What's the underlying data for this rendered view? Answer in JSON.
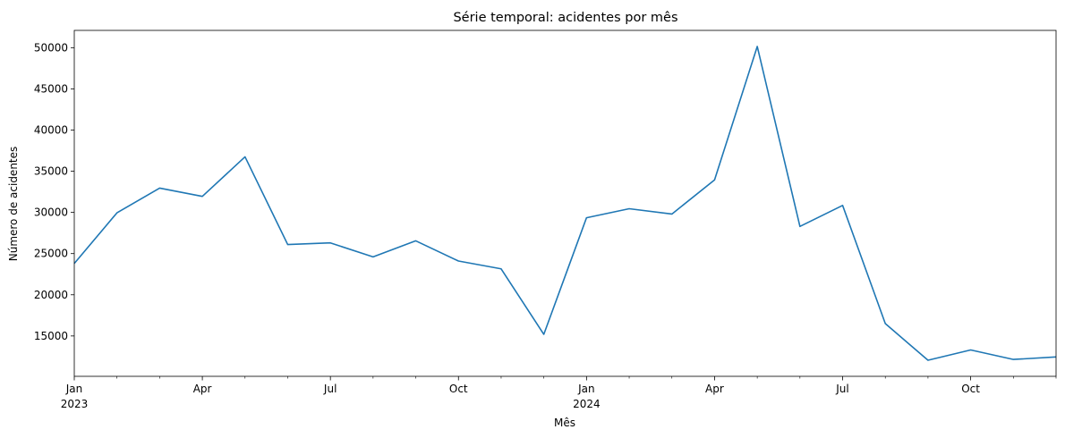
{
  "chart_data": {
    "type": "line",
    "title": "Série temporal: acidentes por mês",
    "xlabel": "Mês",
    "ylabel": "Número de acidentes",
    "x": [
      "2023-01",
      "2023-02",
      "2023-03",
      "2023-04",
      "2023-05",
      "2023-06",
      "2023-07",
      "2023-08",
      "2023-09",
      "2023-10",
      "2023-11",
      "2023-12",
      "2024-01",
      "2024-02",
      "2024-03",
      "2024-04",
      "2024-05",
      "2024-06",
      "2024-07",
      "2024-08",
      "2024-09",
      "2024-10",
      "2024-11",
      "2024-12"
    ],
    "series": [
      {
        "color": "#1f77b4",
        "values": [
          23800,
          29950,
          32950,
          31950,
          36750,
          26100,
          26300,
          24600,
          26550,
          24100,
          23150,
          15200,
          29350,
          30450,
          29800,
          33950,
          50150,
          28300,
          30850,
          16500,
          12050,
          13300,
          12150,
          12450
        ]
      }
    ],
    "xlim": [
      "2023-01",
      "2024-12"
    ],
    "ylim": [
      10100,
      52100
    ],
    "y_ticks": [
      {
        "value": 15000,
        "label": "15000"
      },
      {
        "value": 20000,
        "label": "20000"
      },
      {
        "value": 25000,
        "label": "25000"
      },
      {
        "value": 30000,
        "label": "30000"
      },
      {
        "value": 35000,
        "label": "35000"
      },
      {
        "value": 40000,
        "label": "40000"
      },
      {
        "value": 45000,
        "label": "45000"
      },
      {
        "value": 50000,
        "label": "50000"
      }
    ],
    "x_major_ticks": [
      {
        "x": "2023-01",
        "label": "Jan",
        "sublabel": "2023"
      },
      {
        "x": "2023-04",
        "label": "Apr",
        "sublabel": ""
      },
      {
        "x": "2023-07",
        "label": "Jul",
        "sublabel": ""
      },
      {
        "x": "2023-10",
        "label": "Oct",
        "sublabel": ""
      },
      {
        "x": "2024-01",
        "label": "Jan",
        "sublabel": "2024"
      },
      {
        "x": "2024-04",
        "label": "Apr",
        "sublabel": ""
      },
      {
        "x": "2024-07",
        "label": "Jul",
        "sublabel": ""
      },
      {
        "x": "2024-10",
        "label": "Oct",
        "sublabel": ""
      }
    ],
    "x_minor_ticks": [
      "2023-02",
      "2023-03",
      "2023-05",
      "2023-06",
      "2023-08",
      "2023-09",
      "2023-11",
      "2023-12",
      "2024-02",
      "2024-03",
      "2024-05",
      "2024-06",
      "2024-08",
      "2024-09",
      "2024-11",
      "2024-12"
    ],
    "grid": false,
    "legend": "none"
  }
}
